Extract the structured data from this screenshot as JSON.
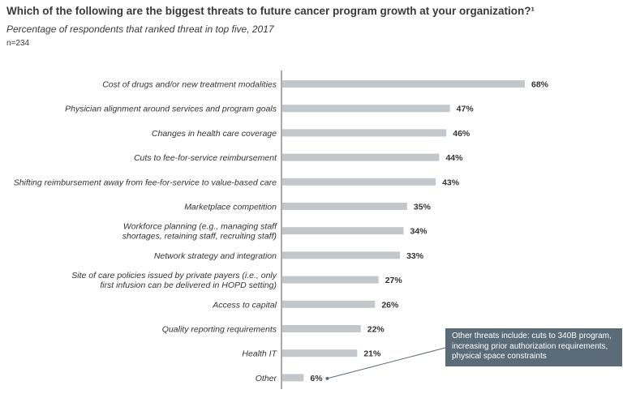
{
  "title": "Which of the following are the biggest threats to future cancer program growth at your organization?¹",
  "subtitle": "Percentage of respondents that ranked threat in top five, 2017",
  "sample_size": "n=234",
  "colors": {
    "bar": "#c2c7cc",
    "axis": "#555555",
    "callout_bg": "#5c6b78",
    "text": "#333333"
  },
  "callout": {
    "text": "Other threats include: cuts to 340B program, increasing prior authorization requirements, physical space constraints",
    "points_to": "Other"
  },
  "chart_data": {
    "type": "bar",
    "orientation": "horizontal",
    "title": "Which of the following are the biggest threats to future cancer program growth at your organization?¹",
    "subtitle": "Percentage of respondents that ranked threat in top five, 2017",
    "xlabel": "",
    "ylabel": "",
    "xlim": [
      0,
      100
    ],
    "grid": false,
    "categories": [
      [
        "Cost of drugs and/or new treatment modalities"
      ],
      [
        "Physician alignment around services and program goals"
      ],
      [
        "Changes in health care coverage"
      ],
      [
        "Cuts to fee-for-service reimbursement"
      ],
      [
        "Shifting reimbursement away from fee-for-service to value-based care"
      ],
      [
        "Marketplace competition"
      ],
      [
        "Workforce planning (e.g., managing staff",
        "shortages, retaining staff, recruiting staff)"
      ],
      [
        "Network strategy and integration"
      ],
      [
        "Site of care policies issued by private payers (i.e., only",
        "first infusion can be delivered in HOPD setting)"
      ],
      [
        "Access to capital"
      ],
      [
        "Quality reporting requirements"
      ],
      [
        "Health IT"
      ],
      [
        "Other"
      ]
    ],
    "values": [
      68,
      47,
      46,
      44,
      43,
      35,
      34,
      33,
      27,
      26,
      22,
      21,
      6
    ],
    "value_labels": [
      "68%",
      "47%",
      "46%",
      "44%",
      "43%",
      "35%",
      "34%",
      "33%",
      "27%",
      "26%",
      "22%",
      "21%",
      "6%"
    ]
  }
}
